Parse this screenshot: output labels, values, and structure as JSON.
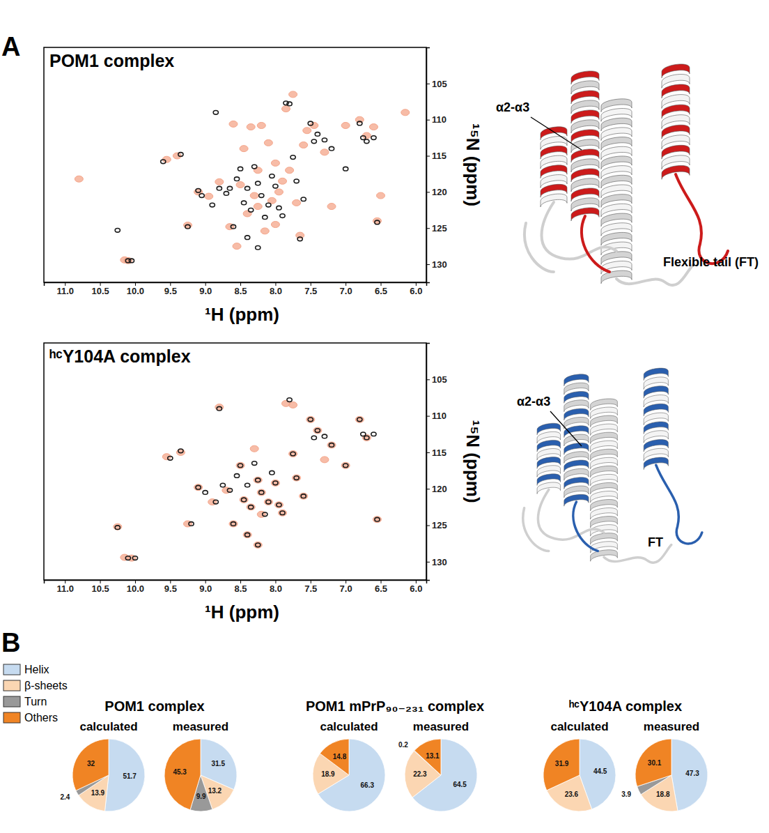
{
  "chart_data": [
    {
      "type": "scatter",
      "title": "POM1 complex",
      "xlabel": "¹H (ppm)",
      "ylabel": "¹⁵N (ppm)",
      "annotations": [
        "A",
        "α2-α3",
        "Flexible tail (FT)"
      ],
      "xlim": [
        11.3,
        5.85
      ],
      "ylim": [
        100,
        132.5
      ],
      "xticks": [
        {
          "value": 11,
          "label": "11.0"
        },
        {
          "value": 10.5,
          "label": "10.5"
        },
        {
          "value": 10,
          "label": "10.0"
        },
        {
          "value": 9.5,
          "label": "9.5"
        },
        {
          "value": 9,
          "label": "9.0"
        },
        {
          "value": 8.5,
          "label": "8.5"
        },
        {
          "value": 8,
          "label": "8.0"
        },
        {
          "value": 7.5,
          "label": "7.5"
        },
        {
          "value": 7,
          "label": "7.0"
        },
        {
          "value": 6.5,
          "label": "6.5"
        },
        {
          "value": 6,
          "label": "6.0"
        }
      ],
      "yticks": [
        105,
        110,
        115,
        120,
        125,
        130
      ],
      "series": [
        {
          "color": "#f4a58a",
          "marker": "blob",
          "x": [
            10.8,
            10.15,
            9.55,
            9.4,
            9.25,
            9.1,
            8.95,
            8.8,
            8.65,
            8.6,
            8.5,
            8.45,
            8.4,
            8.35,
            8.3,
            8.25,
            8.2,
            8.15,
            8.1,
            8.05,
            8.0,
            7.95,
            7.9,
            7.85,
            7.8,
            7.75,
            7.7,
            7.6,
            7.55,
            7.45,
            7.3,
            7.2,
            7.0,
            6.8,
            6.7,
            6.6,
            6.5,
            6.15,
            8.55,
            7.65,
            8.25,
            8.0,
            6.55,
            10.1
          ],
          "values": [
            118.2,
            129.4,
            115.5,
            115.0,
            124.6,
            120.0,
            120.6,
            118.6,
            124.8,
            110.6,
            119.0,
            114.0,
            123.0,
            111.0,
            120.5,
            122.0,
            110.8,
            125.4,
            113.2,
            121.2,
            124.5,
            120.0,
            118.5,
            108.5,
            117.0,
            106.5,
            121.5,
            113.5,
            111.5,
            110.8,
            114.5,
            122.0,
            110.8,
            110.0,
            112.2,
            111.0,
            120.5,
            109.0,
            127.5,
            126.0,
            117.0,
            116.0,
            124.0,
            129.5
          ]
        },
        {
          "color": "#1a1a1a",
          "marker": "ring",
          "x": [
            10.25,
            10.1,
            10.05,
            9.6,
            9.35,
            9.25,
            9.1,
            9.05,
            8.9,
            8.85,
            8.8,
            8.7,
            8.65,
            8.6,
            8.55,
            8.5,
            8.45,
            8.4,
            8.35,
            8.3,
            8.25,
            8.2,
            8.15,
            8.1,
            8.05,
            8.0,
            7.95,
            7.9,
            7.85,
            7.8,
            7.75,
            7.7,
            7.6,
            7.5,
            7.45,
            7.4,
            7.3,
            7.2,
            7.0,
            6.8,
            6.75,
            6.7,
            6.6,
            6.55,
            7.65,
            8.25,
            8.4
          ],
          "values": [
            125.3,
            129.5,
            129.5,
            115.8,
            114.8,
            124.8,
            119.8,
            120.5,
            121.8,
            109.0,
            119.5,
            120.2,
            119.5,
            124.8,
            118.2,
            116.8,
            121.5,
            119.5,
            122.5,
            116.5,
            118.8,
            120.5,
            123.5,
            121.8,
            117.8,
            119.2,
            122.2,
            123.3,
            107.7,
            107.8,
            115.2,
            118.5,
            121.0,
            110.5,
            113.0,
            112.0,
            112.8,
            114.0,
            116.8,
            110.5,
            112.5,
            113.0,
            112.5,
            124.2,
            126.5,
            127.7,
            126.3
          ]
        }
      ]
    },
    {
      "type": "scatter",
      "title": "ʰᶜY104A complex",
      "xlabel": "¹H (ppm)",
      "ylabel": "¹⁵N (ppm)",
      "annotations": [
        "α2-α3",
        "FT"
      ],
      "xlim": [
        11.3,
        5.85
      ],
      "ylim": [
        100,
        132.5
      ],
      "xticks": [
        {
          "value": 11,
          "label": "11.0"
        },
        {
          "value": 10.5,
          "label": "10.5"
        },
        {
          "value": 10,
          "label": "10.0"
        },
        {
          "value": 9.5,
          "label": "9.5"
        },
        {
          "value": 9,
          "label": "9.0"
        },
        {
          "value": 8.5,
          "label": "8.5"
        },
        {
          "value": 8,
          "label": "8.0"
        },
        {
          "value": 7.5,
          "label": "7.5"
        },
        {
          "value": 7,
          "label": "7.0"
        },
        {
          "value": 6.5,
          "label": "6.5"
        },
        {
          "value": 6,
          "label": "6.0"
        }
      ],
      "yticks": [
        105,
        110,
        115,
        120,
        125,
        130
      ],
      "series": [
        {
          "color": "#f4a58a",
          "marker": "blob",
          "x": [
            10.25,
            10.15,
            10.05,
            9.55,
            9.35,
            9.25,
            9.1,
            8.9,
            8.8,
            8.7,
            8.6,
            8.5,
            8.45,
            8.35,
            8.25,
            8.2,
            8.1,
            8.0,
            7.95,
            7.9,
            7.85,
            7.75,
            7.75,
            7.7,
            7.6,
            7.5,
            7.4,
            7.3,
            7.2,
            7.0,
            6.8,
            6.7,
            6.55,
            8.25,
            8.4,
            8.3,
            8.2
          ],
          "values": [
            125.2,
            129.4,
            129.5,
            115.6,
            115.0,
            124.8,
            119.8,
            121.8,
            108.8,
            120.2,
            124.8,
            116.8,
            121.5,
            122.5,
            118.8,
            120.5,
            121.8,
            119.2,
            122.2,
            123.3,
            108.3,
            108.5,
            115.2,
            118.5,
            121.0,
            110.5,
            112.0,
            116.0,
            114.0,
            116.8,
            110.5,
            113.0,
            124.2,
            127.7,
            126.3,
            114.5,
            123.5
          ]
        },
        {
          "color": "#1a1a1a",
          "marker": "ring",
          "x": [
            10.25,
            10.1,
            10.0,
            9.5,
            9.35,
            9.2,
            9.1,
            9.0,
            8.85,
            8.8,
            8.75,
            8.65,
            8.6,
            8.55,
            8.5,
            8.45,
            8.4,
            8.35,
            8.3,
            8.25,
            8.2,
            8.15,
            8.1,
            8.05,
            8.0,
            7.95,
            7.9,
            7.8,
            7.75,
            7.7,
            7.6,
            7.5,
            7.45,
            7.4,
            7.3,
            7.2,
            7.0,
            6.8,
            6.75,
            6.7,
            6.6,
            6.55,
            8.25,
            8.4
          ],
          "values": [
            125.3,
            129.5,
            129.5,
            115.8,
            114.8,
            124.8,
            119.8,
            120.5,
            121.8,
            109.0,
            119.5,
            120.2,
            124.8,
            118.2,
            116.8,
            121.5,
            119.5,
            122.5,
            116.5,
            118.8,
            120.5,
            123.5,
            121.8,
            117.8,
            119.2,
            122.2,
            123.3,
            107.8,
            115.2,
            118.5,
            121.0,
            110.5,
            113.0,
            112.0,
            112.8,
            114.0,
            116.8,
            110.5,
            112.5,
            113.0,
            112.5,
            124.2,
            127.7,
            126.3
          ]
        }
      ]
    },
    {
      "type": "pie",
      "annotations": [
        "B"
      ],
      "legend": "top-left",
      "data_labels": true,
      "categories": [
        "Helix",
        "β-sheets",
        "Turn",
        "Others"
      ],
      "colors": [
        "#c6dbf0",
        "#fbd6b2",
        "#999999",
        "#f08424"
      ],
      "groups": [
        {
          "title": "POM1 complex",
          "pies": [
            {
              "subtitle": "calculated",
              "values": [
                51.7,
                13.9,
                2.4,
                32
              ]
            },
            {
              "subtitle": "measured",
              "values": [
                31.5,
                13.2,
                9.9,
                45.3
              ]
            }
          ]
        },
        {
          "title": "POM1 mPrP₉₀₋₂₃₁ complex",
          "pies": [
            {
              "subtitle": "calculated",
              "values": [
                66.3,
                18.9,
                null,
                14.8
              ]
            },
            {
              "subtitle": "measured",
              "values": [
                64.5,
                22.3,
                0.2,
                13.1
              ]
            }
          ]
        },
        {
          "title": "ʰᶜY104A complex",
          "pies": [
            {
              "subtitle": "calculated",
              "values": [
                44.5,
                23.6,
                null,
                31.9
              ]
            },
            {
              "subtitle": "measured",
              "values": [
                47.3,
                18.8,
                3.9,
                30.1
              ]
            }
          ]
        }
      ]
    }
  ]
}
